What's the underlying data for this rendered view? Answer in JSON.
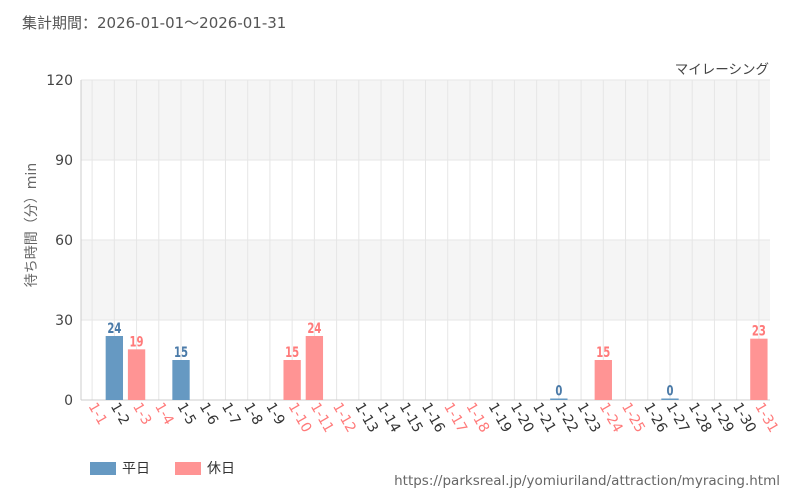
{
  "header": {
    "period": "集計期間：2026-01-01〜2026-01-31"
  },
  "footer": {
    "url": "https://parksreal.jp/yomiuriland/attraction/myracing.html"
  },
  "colors": {
    "weekday": "#6699c2",
    "holiday": "#ff9494",
    "weekday_label": "#4a7aa8",
    "holiday_label": "#ff7a7a",
    "grid": "#e6e6e6",
    "band": "#f5f5f5"
  },
  "legend": {
    "weekday": "平日",
    "holiday": "休日"
  },
  "chart_data": {
    "type": "bar",
    "title": "マイレーシング",
    "ylabel": "待ち時間（分）min",
    "xlabel": "",
    "ylim": [
      0,
      120
    ],
    "yticks": [
      0,
      30,
      60,
      90,
      120
    ],
    "grid": true,
    "legend_position": "bottom-left",
    "categories": [
      "1-1",
      "1-2",
      "1-3",
      "1-4",
      "1-5",
      "1-6",
      "1-7",
      "1-8",
      "1-9",
      "1-10",
      "1-11",
      "1-12",
      "1-13",
      "1-14",
      "1-15",
      "1-16",
      "1-17",
      "1-18",
      "1-19",
      "1-20",
      "1-21",
      "1-22",
      "1-23",
      "1-24",
      "1-25",
      "1-26",
      "1-27",
      "1-28",
      "1-29",
      "1-30",
      "1-31"
    ],
    "day_type": [
      "holiday",
      "weekday",
      "holiday",
      "holiday",
      "weekday",
      "weekday",
      "weekday",
      "weekday",
      "weekday",
      "holiday",
      "holiday",
      "holiday",
      "weekday",
      "weekday",
      "weekday",
      "weekday",
      "holiday",
      "holiday",
      "weekday",
      "weekday",
      "weekday",
      "weekday",
      "weekday",
      "holiday",
      "holiday",
      "weekday",
      "weekday",
      "weekday",
      "weekday",
      "weekday",
      "holiday"
    ],
    "values": [
      null,
      24,
      19,
      null,
      15,
      null,
      null,
      null,
      null,
      15,
      24,
      null,
      null,
      null,
      null,
      null,
      null,
      null,
      null,
      null,
      null,
      0,
      null,
      15,
      null,
      null,
      0,
      null,
      null,
      null,
      23
    ],
    "series": [
      {
        "name": "平日",
        "values": [
          null,
          24,
          null,
          null,
          15,
          null,
          null,
          null,
          null,
          null,
          null,
          null,
          null,
          null,
          null,
          null,
          null,
          null,
          null,
          null,
          null,
          0,
          null,
          null,
          null,
          null,
          0,
          null,
          null,
          null,
          null
        ]
      },
      {
        "name": "休日",
        "values": [
          null,
          null,
          19,
          null,
          null,
          null,
          null,
          null,
          null,
          15,
          24,
          null,
          null,
          null,
          null,
          null,
          null,
          null,
          null,
          null,
          null,
          null,
          null,
          15,
          null,
          null,
          null,
          null,
          null,
          null,
          23
        ]
      }
    ]
  }
}
